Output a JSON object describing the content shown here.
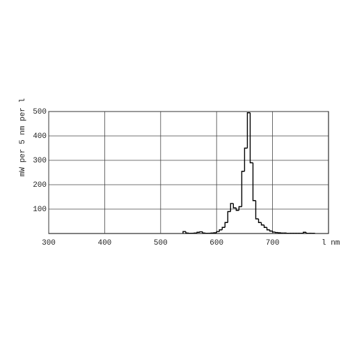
{
  "chart_data": {
    "type": "histogram",
    "y_label": "mW per 5 nm per l",
    "x_label": "l nm",
    "bins": [
      540,
      545,
      550,
      555,
      560,
      565,
      570,
      575,
      580,
      585,
      590,
      595,
      600,
      605,
      610,
      615,
      620,
      625,
      630,
      635,
      640,
      645,
      650,
      655,
      660,
      665,
      670,
      675,
      680,
      685,
      690,
      695,
      700,
      705,
      710,
      715,
      720,
      725,
      730,
      735,
      740,
      745,
      750,
      755,
      760,
      765,
      770,
      775
    ],
    "values": [
      8,
      2,
      1,
      1,
      2,
      5,
      7,
      2,
      1,
      1,
      2,
      3,
      8,
      15,
      25,
      45,
      90,
      123,
      105,
      95,
      110,
      255,
      350,
      495,
      290,
      135,
      60,
      45,
      35,
      25,
      15,
      10,
      6,
      4,
      3,
      2,
      2,
      1,
      1,
      1,
      1,
      1,
      1,
      5,
      1,
      1,
      1
    ],
    "color": "#000000",
    "xlim": [
      300,
      800
    ],
    "xticks": [
      300,
      400,
      500,
      600,
      700
    ],
    "ylim": [
      0,
      500
    ],
    "yticks": [
      100,
      200,
      300,
      400,
      500
    ],
    "grid": true
  }
}
